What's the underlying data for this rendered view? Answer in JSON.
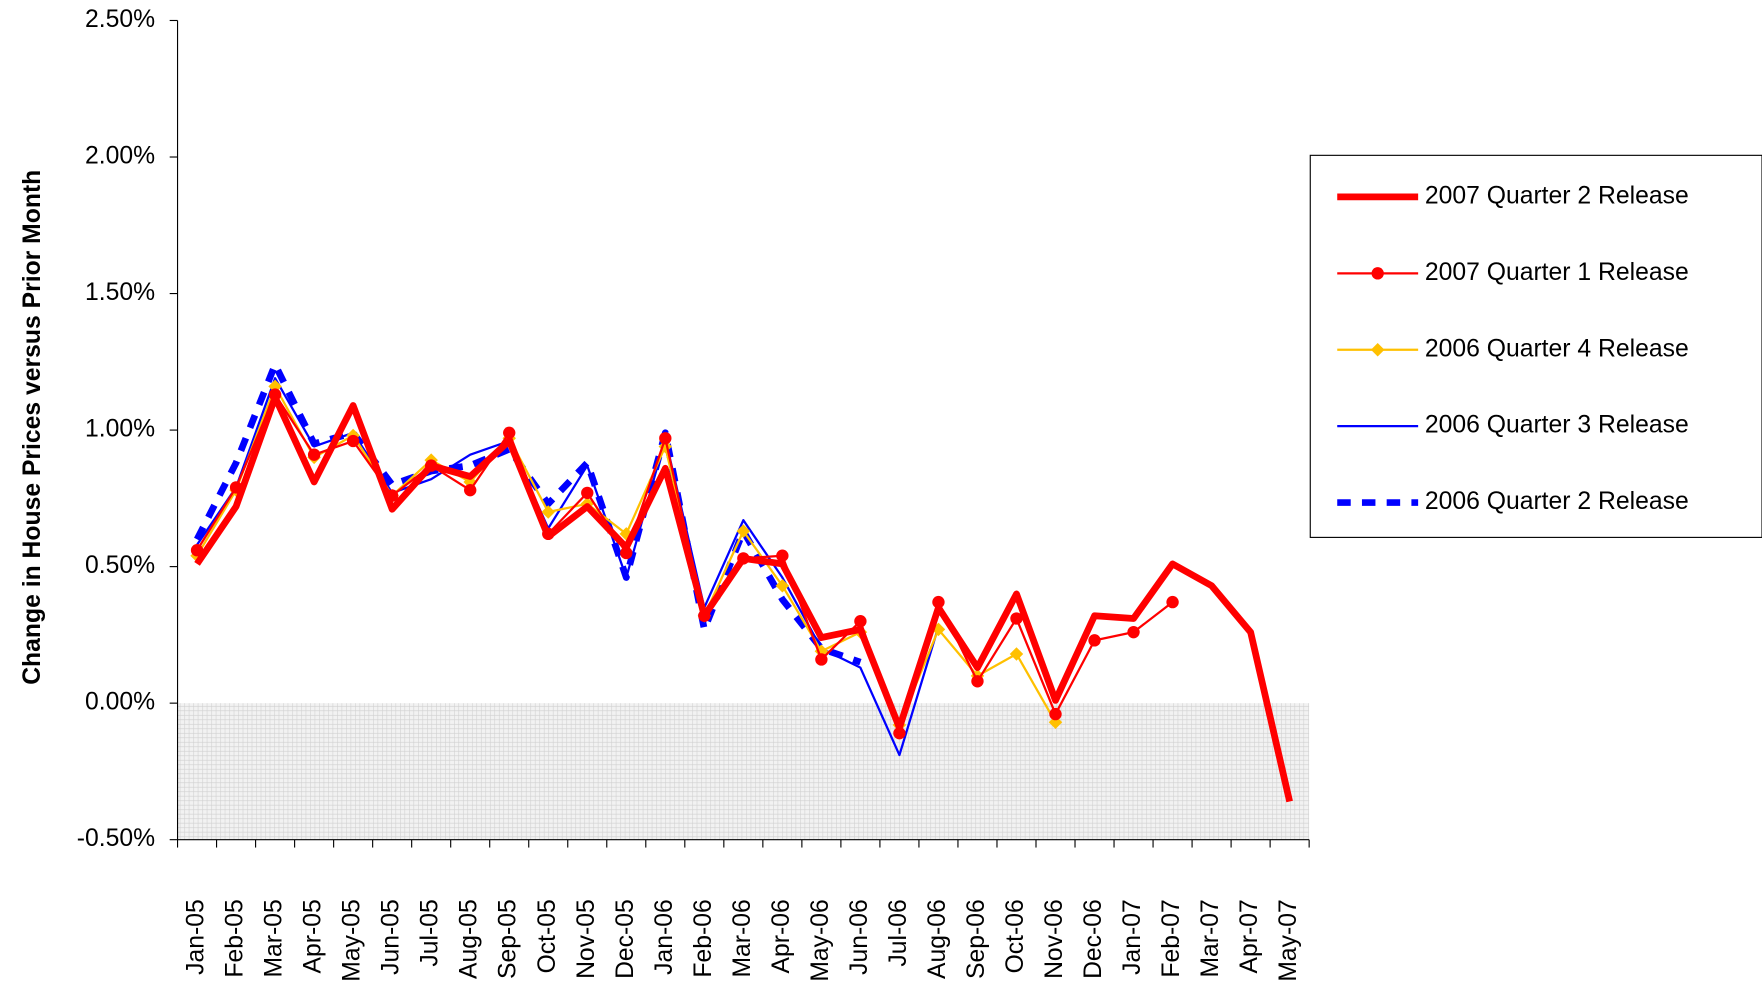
{
  "chart_data": {
    "type": "line",
    "y_label": "Change in House Prices versus Prior Month",
    "categories": [
      "Jan-05",
      "Feb-05",
      "Mar-05",
      "Apr-05",
      "May-05",
      "Jun-05",
      "Jul-05",
      "Aug-05",
      "Sep-05",
      "Oct-05",
      "Nov-05",
      "Dec-05",
      "Jan-06",
      "Feb-06",
      "Mar-06",
      "Apr-06",
      "May-06",
      "Jun-06",
      "Jul-06",
      "Aug-06",
      "Sep-06",
      "Oct-06",
      "Nov-06",
      "Dec-06",
      "Jan-07",
      "Feb-07",
      "Mar-07",
      "Apr-07",
      "May-07"
    ],
    "ylim": [
      -0.5,
      2.5
    ],
    "yticks": [
      {
        "value": -0.5,
        "label": "-0.50%"
      },
      {
        "value": 0,
        "label": "0.00%"
      },
      {
        "value": 0.5,
        "label": "0.50%"
      },
      {
        "value": 1,
        "label": "1.00%"
      },
      {
        "value": 1.5,
        "label": "1.50%"
      },
      {
        "value": 2,
        "label": "2.00%"
      },
      {
        "value": 2.5,
        "label": "2.50%"
      }
    ],
    "legend": "right",
    "series": [
      {
        "name": "2007 Quarter 2 Release",
        "color": "#ff0000",
        "line_width": 6,
        "marker": "none",
        "dashed": false,
        "values": [
          0.51,
          0.72,
          1.12,
          0.81,
          1.09,
          0.71,
          0.87,
          0.83,
          0.96,
          0.61,
          0.72,
          0.57,
          0.86,
          0.32,
          0.53,
          0.51,
          0.24,
          0.27,
          -0.09,
          0.35,
          0.13,
          0.4,
          0.01,
          0.32,
          0.31,
          0.51,
          0.43,
          0.26,
          -0.36
        ]
      },
      {
        "name": "2007 Quarter 1 Release",
        "color": "#ff0000",
        "line_width": 2,
        "marker": "circle",
        "dashed": false,
        "values": [
          0.56,
          0.79,
          1.13,
          0.91,
          0.96,
          0.76,
          0.87,
          0.78,
          0.99,
          0.62,
          0.77,
          0.55,
          0.97,
          0.32,
          0.53,
          0.54,
          0.16,
          0.3,
          -0.11,
          0.37,
          0.08,
          0.31,
          -0.04,
          0.23,
          0.26,
          0.37,
          null,
          null,
          null
        ]
      },
      {
        "name": "2006 Quarter 4 Release",
        "color": "#ffc000",
        "line_width": 2,
        "marker": "diamond",
        "dashed": false,
        "values": [
          0.54,
          0.78,
          1.16,
          0.9,
          0.98,
          0.76,
          0.89,
          0.81,
          0.97,
          0.7,
          0.73,
          0.62,
          0.94,
          0.32,
          0.63,
          0.43,
          0.19,
          0.26,
          -0.08,
          0.27,
          0.1,
          0.18,
          -0.07,
          null,
          null,
          null,
          null,
          null,
          null
        ]
      },
      {
        "name": "2006 Quarter 3 Release",
        "color": "#0000ff",
        "line_width": 2,
        "marker": "none",
        "dashed": false,
        "values": [
          0.58,
          0.79,
          1.19,
          0.94,
          0.99,
          0.77,
          0.82,
          0.91,
          0.96,
          0.64,
          0.87,
          0.46,
          0.97,
          0.35,
          0.67,
          0.46,
          0.2,
          0.13,
          -0.19,
          0.28,
          null,
          null,
          null,
          null,
          null,
          null,
          null,
          null,
          null
        ]
      },
      {
        "name": "2006 Quarter 2 Release",
        "color": "#0000ff",
        "line_width": 6,
        "marker": "none",
        "dashed": true,
        "values": [
          0.6,
          0.88,
          1.24,
          0.95,
          0.99,
          0.8,
          0.85,
          0.87,
          0.93,
          0.73,
          0.88,
          0.46,
          0.99,
          0.27,
          0.63,
          0.38,
          0.2,
          0.15,
          null,
          null,
          null,
          null,
          null,
          null,
          null,
          null,
          null,
          null,
          null
        ]
      }
    ]
  }
}
